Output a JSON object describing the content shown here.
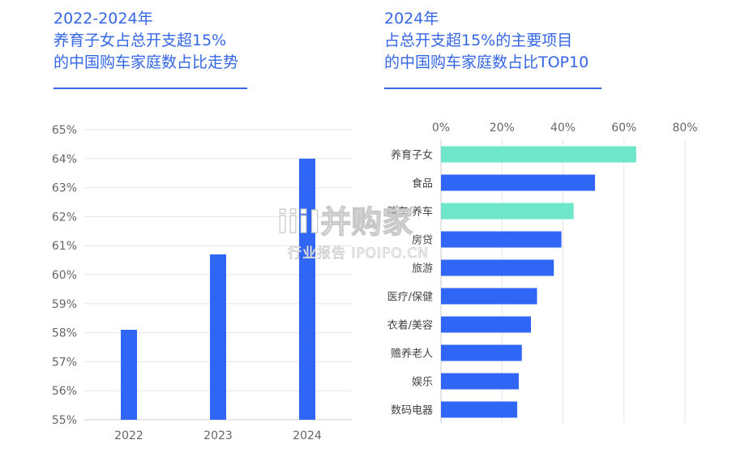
{
  "colors": {
    "title": "#3466e6",
    "bar": "#2f66f5",
    "highlight": "#6ee6c9",
    "grid": "#e6e6e6"
  },
  "left_panel": {
    "title_lines": [
      "2022-2024年",
      "养育子女占总开支超15%",
      "的中国购车家庭数占比走势"
    ]
  },
  "right_panel": {
    "title_lines": [
      "2024年",
      "占总开支超15%的主要项目",
      "的中国购车家庭数占比TOP10"
    ]
  },
  "watermark": {
    "brand": "iiiI并购家",
    "sub": "行业报告 IPOIPO.CN"
  },
  "chart_data": [
    {
      "type": "bar",
      "categories": [
        "2022",
        "2023",
        "2024"
      ],
      "values": [
        58.1,
        60.7,
        64.0
      ],
      "ylim": [
        55,
        65
      ],
      "yticks": [
        "55%",
        "56%",
        "57%",
        "58%",
        "59%",
        "60%",
        "61%",
        "62%",
        "63%",
        "64%",
        "65%"
      ],
      "grid": true
    },
    {
      "type": "bar",
      "orientation": "horizontal",
      "categories": [
        "养育子女",
        "食品",
        "购车/养车",
        "房贷",
        "旅游",
        "医疗/保健",
        "衣着/美容",
        "赡养老人",
        "娱乐",
        "数码电器"
      ],
      "values": [
        64,
        50.5,
        43.5,
        39.5,
        37,
        31.5,
        29.5,
        26.5,
        25.5,
        25
      ],
      "highlight": [
        true,
        false,
        true,
        false,
        false,
        false,
        false,
        false,
        false,
        false
      ],
      "xlim": [
        0,
        80
      ],
      "xticks": [
        "0%",
        "20%",
        "40%",
        "60%",
        "80%"
      ],
      "grid": true
    }
  ]
}
